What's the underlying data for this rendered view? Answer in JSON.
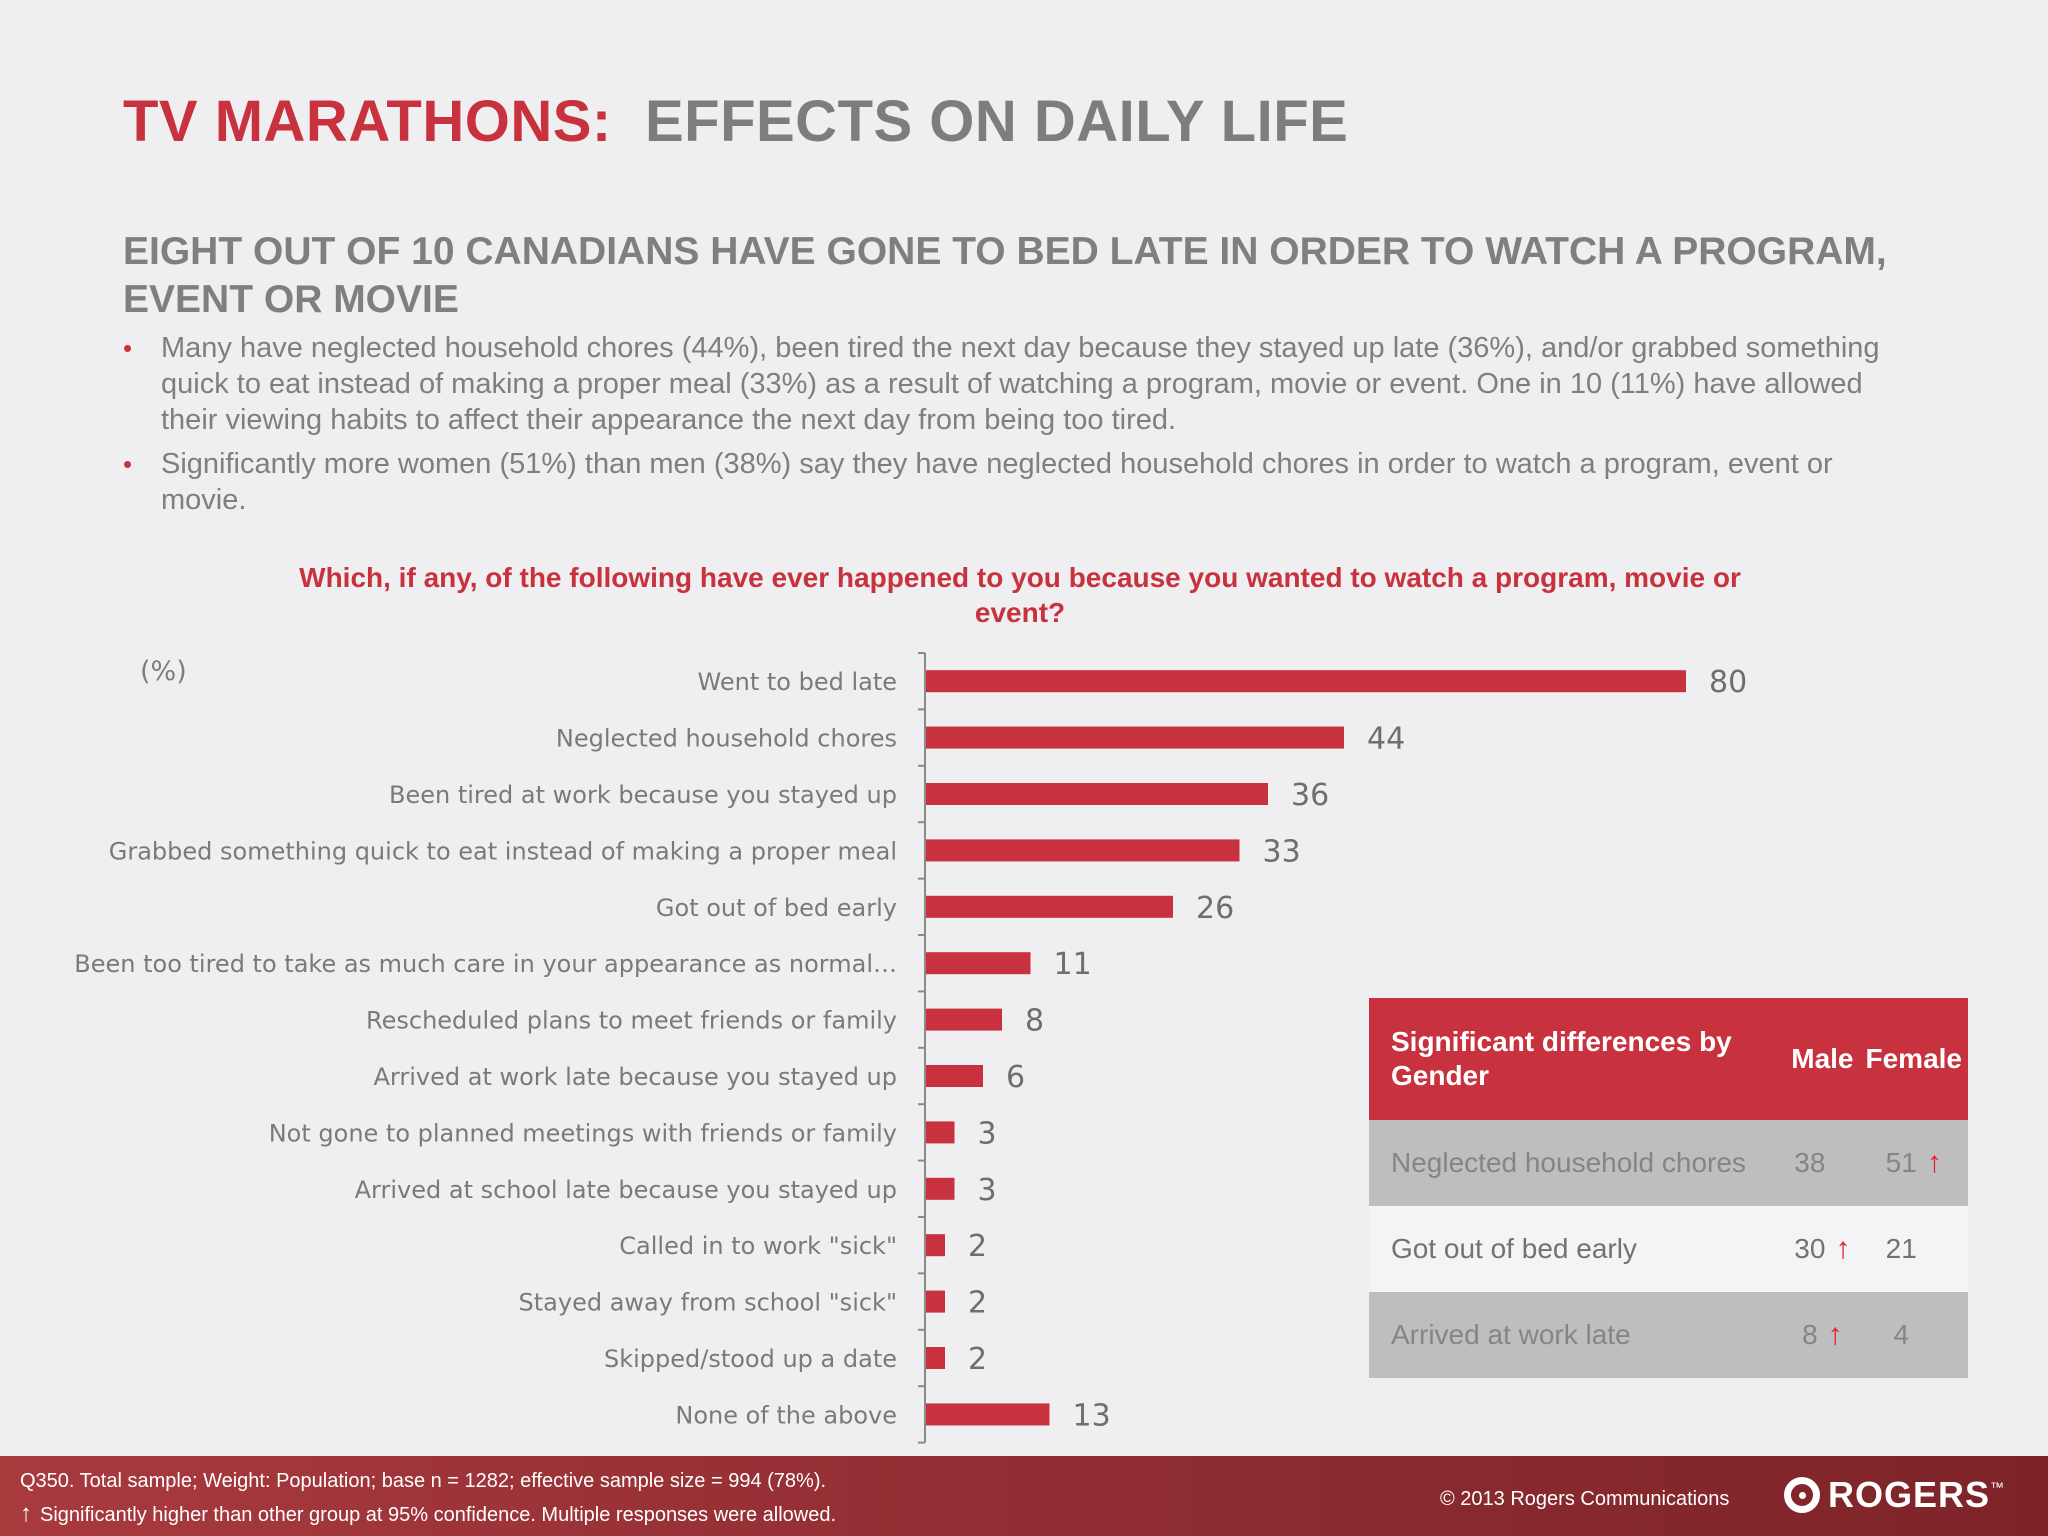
{
  "title": {
    "part1": "TV MARATHONS:",
    "part2": "EFFECTS ON DAILY LIFE"
  },
  "subheading": "EIGHT OUT OF 10 CANADIANS HAVE GONE TO BED LATE IN ORDER TO WATCH A PROGRAM, EVENT OR MOVIE",
  "bullets": [
    "Many have neglected household chores (44%), been tired the next day because they stayed up late (36%), and/or grabbed something quick to eat instead of making a proper meal (33%) as a result of watching a program, movie or event.  One in 10 (11%) have allowed their viewing habits to affect their appearance the next day from being too tired.",
    "Significantly more women (51%) than men (38%) say they have neglected household chores in order to watch a program, event or movie."
  ],
  "chart_data": {
    "type": "bar",
    "orientation": "horizontal",
    "title": "Which, if any, of the following have ever happened to you because you wanted to watch a program, movie or event?",
    "unit_label": "(%)",
    "categories": [
      "Went to bed late",
      "Neglected household chores",
      "Been tired at work because you stayed up",
      "Grabbed something quick to eat instead of making a proper meal",
      "Got out of bed early",
      "Been too tired to take as much care in your appearance as normal…",
      "Rescheduled plans to meet friends or family",
      "Arrived at  work late because you stayed up",
      "Not gone to planned meetings with friends or family",
      "Arrived at school late because you stayed up",
      "Called in to work \"sick\"",
      "Stayed away from school \"sick\"",
      "Skipped/stood up a date",
      "None of the above"
    ],
    "values": [
      80,
      44,
      36,
      33,
      26,
      11,
      8,
      6,
      3,
      3,
      2,
      2,
      2,
      13
    ],
    "xlim": [
      0,
      100
    ],
    "bar_color": "#c8313e"
  },
  "gender_table": {
    "header": {
      "label": "Significant differences by Gender",
      "male": "Male",
      "female": "Female"
    },
    "rows": [
      {
        "label": "Neglected  household chores",
        "male": "38",
        "female": "51",
        "higher": "female"
      },
      {
        "label": "Got out of bed early",
        "male": "30",
        "female": "21",
        "higher": "male"
      },
      {
        "label": "Arrived at work late",
        "male": "8",
        "female": "4",
        "higher": "male"
      }
    ],
    "arrow_glyph": "↑"
  },
  "footer": {
    "note1": "Q350. Total sample; Weight: Population; base n = 1282; effective sample size = 994 (78%).",
    "note2": "Significantly higher than other group at 95% confidence. Multiple responses were allowed.",
    "note2_icon": "↑",
    "copyright": "© 2013 Rogers Communications",
    "logo_text": "ROGERS",
    "logo_tm": "™"
  }
}
